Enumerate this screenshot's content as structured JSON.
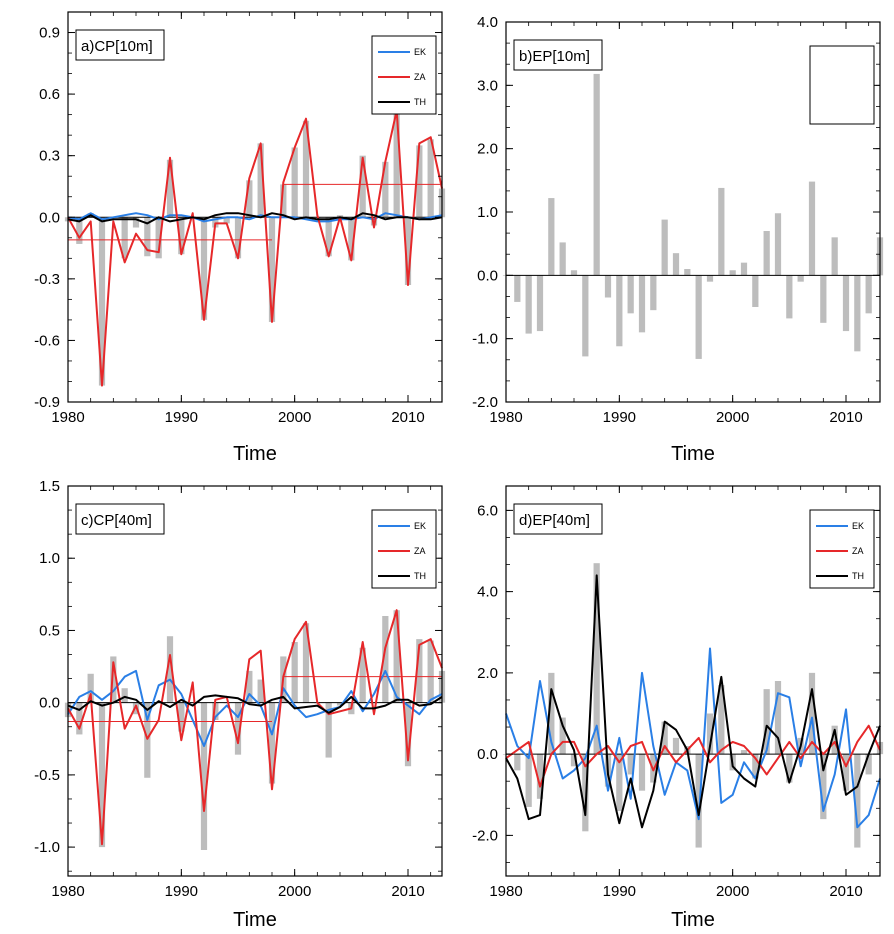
{
  "chart_data": [
    {
      "type": "bar+line",
      "title": "a)CP[10m]",
      "xlabel": "Time",
      "ylabel": "",
      "xlim": [
        1980,
        2013
      ],
      "ylim": [
        -0.9,
        1.0
      ],
      "yticks": [
        -0.9,
        -0.6,
        -0.3,
        0.0,
        0.3,
        0.6,
        0.9
      ],
      "ytick_labels": [
        "-0.9",
        "-0.6",
        "-0.3",
        "0.0",
        "0.3",
        "0.6",
        "0.9"
      ],
      "xticks": [
        1980,
        1990,
        2000,
        2010
      ],
      "xtick_labels": [
        "1980",
        "1990",
        "2000",
        "2010"
      ],
      "legend_position": "top-right",
      "years": [
        1980,
        1981,
        1982,
        1983,
        1984,
        1985,
        1986,
        1987,
        1988,
        1989,
        1990,
        1991,
        1992,
        1993,
        1994,
        1995,
        1996,
        1997,
        1998,
        1999,
        2000,
        2001,
        2002,
        2003,
        2004,
        2005,
        2006,
        2007,
        2008,
        2009,
        2010,
        2011,
        2012,
        2013
      ],
      "bars": [
        -0.02,
        -0.13,
        0.02,
        -0.82,
        0.0,
        -0.2,
        -0.05,
        -0.19,
        -0.2,
        0.28,
        -0.18,
        0.0,
        -0.5,
        -0.05,
        -0.03,
        -0.2,
        0.18,
        0.36,
        -0.51,
        0.16,
        0.34,
        0.47,
        0.0,
        -0.19,
        0.01,
        -0.21,
        0.3,
        -0.04,
        0.27,
        0.52,
        -0.33,
        0.35,
        0.38,
        0.14
      ],
      "series": [
        {
          "name": "EK",
          "color": "#2a7fe6",
          "values": [
            0.0,
            -0.01,
            0.02,
            -0.01,
            0.0,
            0.01,
            0.02,
            0.01,
            -0.01,
            0.01,
            0.01,
            0.0,
            -0.02,
            -0.01,
            0.0,
            0.0,
            -0.01,
            0.01,
            0.0,
            0.0,
            0.0,
            -0.01,
            -0.02,
            -0.02,
            -0.01,
            -0.01,
            0.0,
            -0.01,
            0.02,
            0.01,
            0.0,
            -0.01,
            0.0,
            0.01
          ]
        },
        {
          "name": "ZA",
          "color": "#e6282a",
          "values": [
            0.0,
            -0.1,
            -0.02,
            -0.82,
            -0.02,
            -0.22,
            -0.08,
            -0.16,
            -0.17,
            0.29,
            -0.18,
            0.02,
            -0.5,
            -0.03,
            -0.03,
            -0.2,
            0.19,
            0.36,
            -0.51,
            0.17,
            0.34,
            0.48,
            0.01,
            -0.19,
            0.0,
            -0.21,
            0.29,
            -0.05,
            0.27,
            0.52,
            -0.33,
            0.36,
            0.39,
            0.14
          ]
        },
        {
          "name": "TH",
          "color": "#000000",
          "values": [
            -0.01,
            -0.02,
            0.01,
            -0.02,
            -0.01,
            -0.01,
            -0.01,
            -0.03,
            0.0,
            -0.02,
            -0.01,
            0.0,
            -0.01,
            0.01,
            0.02,
            0.02,
            0.01,
            0.0,
            0.02,
            0.01,
            -0.01,
            0.0,
            -0.01,
            -0.01,
            0.0,
            -0.01,
            0.02,
            0.01,
            -0.01,
            0.0,
            0.0,
            -0.01,
            -0.01,
            0.0
          ]
        }
      ],
      "reference_lines": [
        {
          "y": -0.11,
          "x_start": 1980,
          "x_end": 1998,
          "color": "#e6282a"
        },
        {
          "y": 0.16,
          "x_start": 1999,
          "x_end": 2013,
          "color": "#e6282a"
        }
      ]
    },
    {
      "type": "bar+line",
      "title": "b)EP[10m]",
      "xlabel": "Time",
      "ylabel": "",
      "xlim": [
        1980,
        2013
      ],
      "ylim": [
        -2.0,
        4.0
      ],
      "yticks": [
        -2.0,
        -1.0,
        0.0,
        1.0,
        2.0,
        3.0,
        4.0
      ],
      "ytick_labels": [
        "-2.0",
        "-1.0",
        "0.0",
        "1.0",
        "2.0",
        "3.0",
        "4.0"
      ],
      "xticks": [
        1980,
        1990,
        2000,
        2010
      ],
      "xtick_labels": [
        "1980",
        "1990",
        "2000",
        "2010"
      ],
      "legend_position": "top-right",
      "years": [
        1980,
        1981,
        1982,
        1983,
        1984,
        1985,
        1986,
        1987,
        1988,
        1989,
        1990,
        1991,
        1992,
        1993,
        1994,
        1995,
        1996,
        1997,
        1998,
        1999,
        2000,
        2001,
        2002,
        2003,
        2004,
        2005,
        2006,
        2007,
        2008,
        2009,
        2010,
        2011,
        2012,
        2013
      ],
      "bars": [
        0.0,
        -0.42,
        -0.92,
        -0.88,
        1.22,
        0.52,
        0.08,
        -1.28,
        3.18,
        -0.35,
        -1.12,
        -0.6,
        -0.9,
        -0.55,
        0.88,
        0.35,
        0.1,
        -1.32,
        -0.1,
        1.38,
        0.08,
        0.2,
        -0.5,
        0.7,
        0.98,
        -0.68,
        -0.1,
        1.48,
        -0.75,
        0.6,
        -0.88,
        -1.2,
        -0.6,
        0.6
      ]
    },
    {
      "type": "bar+line",
      "title": "c)CP[40m]",
      "xlabel": "Time",
      "ylabel": "",
      "xlim": [
        1980,
        2013
      ],
      "ylim": [
        -1.2,
        1.5
      ],
      "yticks": [
        -1.0,
        -0.5,
        0.0,
        0.5,
        1.0,
        1.5
      ],
      "ytick_labels": [
        "-1.0",
        "-0.5",
        "0.0",
        "0.5",
        "1.0",
        "1.5"
      ],
      "xticks": [
        1980,
        1990,
        2000,
        2010
      ],
      "xtick_labels": [
        "1980",
        "1990",
        "2000",
        "2010"
      ],
      "legend_position": "top-right",
      "years": [
        1980,
        1981,
        1982,
        1983,
        1984,
        1985,
        1986,
        1987,
        1988,
        1989,
        1990,
        1991,
        1992,
        1993,
        1994,
        1995,
        1996,
        1997,
        1998,
        1999,
        2000,
        2001,
        2002,
        2003,
        2004,
        2005,
        2006,
        2007,
        2008,
        2009,
        2010,
        2011,
        2012,
        2013
      ],
      "bars": [
        -0.1,
        -0.22,
        0.2,
        -1.0,
        0.32,
        0.1,
        -0.08,
        -0.52,
        0.0,
        0.46,
        -0.2,
        0.0,
        -1.02,
        -0.12,
        0.0,
        -0.36,
        0.22,
        0.16,
        -0.56,
        0.32,
        0.42,
        0.55,
        0.0,
        -0.38,
        -0.02,
        -0.08,
        0.38,
        0.0,
        0.6,
        0.64,
        -0.44,
        0.44,
        0.43,
        0.22
      ],
      "series": [
        {
          "name": "EK",
          "color": "#2a7fe6",
          "values": [
            -0.08,
            0.04,
            0.08,
            0.02,
            0.08,
            0.18,
            0.22,
            -0.12,
            0.12,
            0.16,
            0.06,
            -0.12,
            -0.3,
            -0.1,
            -0.02,
            -0.1,
            0.06,
            -0.02,
            -0.22,
            0.1,
            -0.02,
            -0.1,
            -0.08,
            -0.05,
            -0.03,
            0.08,
            -0.06,
            0.06,
            0.22,
            0.04,
            -0.02,
            -0.08,
            0.02,
            0.06
          ]
        },
        {
          "name": "ZA",
          "color": "#e6282a",
          "values": [
            -0.04,
            -0.18,
            0.06,
            -0.98,
            0.28,
            -0.18,
            -0.02,
            -0.25,
            -0.12,
            0.33,
            -0.26,
            0.14,
            -0.75,
            0.02,
            0.04,
            -0.28,
            0.3,
            0.36,
            -0.6,
            0.18,
            0.44,
            0.56,
            0.0,
            -0.08,
            -0.06,
            -0.04,
            0.42,
            -0.08,
            0.38,
            0.64,
            -0.4,
            0.4,
            0.44,
            0.24
          ]
        },
        {
          "name": "TH",
          "color": "#000000",
          "values": [
            -0.02,
            -0.05,
            0.01,
            -0.02,
            0.0,
            0.04,
            0.02,
            -0.05,
            0.01,
            -0.03,
            0.02,
            -0.02,
            0.04,
            0.05,
            0.04,
            0.03,
            -0.01,
            -0.02,
            0.02,
            0.04,
            -0.04,
            -0.03,
            -0.02,
            -0.07,
            -0.03,
            0.04,
            -0.04,
            -0.04,
            -0.02,
            0.02,
            0.02,
            -0.02,
            -0.01,
            0.04
          ]
        }
      ],
      "reference_lines": [
        {
          "y": -0.13,
          "x_start": 1980,
          "x_end": 1998,
          "color": "#e6282a"
        },
        {
          "y": 0.18,
          "x_start": 1999,
          "x_end": 2013,
          "color": "#e6282a"
        }
      ]
    },
    {
      "type": "bar+line",
      "title": "d)EP[40m]",
      "xlabel": "Time",
      "ylabel": "",
      "xlim": [
        1980,
        2013
      ],
      "ylim": [
        -3.0,
        6.6
      ],
      "yticks": [
        -2.0,
        0.0,
        2.0,
        4.0,
        6.0
      ],
      "ytick_labels": [
        "-2.0",
        "0.0",
        "2.0",
        "4.0",
        "6.0"
      ],
      "xticks": [
        1980,
        1990,
        2000,
        2010
      ],
      "xtick_labels": [
        "1980",
        "1990",
        "2000",
        "2010"
      ],
      "legend_position": "top-right",
      "years": [
        1980,
        1981,
        1982,
        1983,
        1984,
        1985,
        1986,
        1987,
        1988,
        1989,
        1990,
        1991,
        1992,
        1993,
        1994,
        1995,
        1996,
        1997,
        1998,
        1999,
        2000,
        2001,
        2002,
        2003,
        2004,
        2005,
        2006,
        2007,
        2008,
        2009,
        2010,
        2011,
        2012,
        2013
      ],
      "bars": [
        0.0,
        -0.4,
        -1.3,
        -1.1,
        2.0,
        0.9,
        -0.3,
        -1.9,
        4.7,
        -0.8,
        -1.4,
        -0.5,
        -0.9,
        -0.7,
        0.8,
        0.4,
        0.2,
        -2.3,
        1.0,
        1.7,
        -0.4,
        0.1,
        -0.6,
        1.6,
        1.8,
        -0.7,
        0.4,
        2.0,
        -1.6,
        0.7,
        -0.9,
        -2.3,
        -0.5,
        0.3
      ],
      "series": [
        {
          "name": "EK",
          "color": "#2a7fe6",
          "values": [
            1.0,
            0.2,
            -0.1,
            1.8,
            0.3,
            -0.6,
            -0.4,
            -0.1,
            0.7,
            -0.9,
            0.4,
            -1.1,
            2.0,
            0.2,
            -1.0,
            -0.2,
            -0.4,
            -1.6,
            2.6,
            -1.2,
            -1.0,
            -0.2,
            -0.6,
            0.1,
            1.5,
            1.4,
            -0.3,
            0.9,
            -1.4,
            -0.5,
            1.1,
            -1.8,
            -1.5,
            -0.6
          ]
        },
        {
          "name": "ZA",
          "color": "#e6282a",
          "values": [
            -0.1,
            0.1,
            0.3,
            -0.8,
            0.0,
            0.3,
            0.3,
            -0.3,
            0.0,
            0.2,
            -0.2,
            0.2,
            0.3,
            -0.4,
            0.2,
            -0.2,
            0.1,
            0.4,
            -0.2,
            0.1,
            0.3,
            0.2,
            -0.1,
            -0.5,
            -0.1,
            0.3,
            -0.1,
            0.3,
            0.0,
            0.3,
            -0.3,
            0.3,
            0.7,
            0.1
          ]
        },
        {
          "name": "TH",
          "color": "#000000",
          "values": [
            -0.1,
            -0.6,
            -1.6,
            -1.5,
            1.6,
            0.7,
            0.1,
            -1.5,
            4.4,
            -0.5,
            -1.7,
            -0.6,
            -1.8,
            -0.9,
            0.8,
            0.6,
            0.1,
            -1.5,
            0.2,
            1.9,
            -0.3,
            -0.6,
            -0.8,
            0.7,
            0.4,
            -0.7,
            0.2,
            1.6,
            -0.4,
            0.6,
            -1.0,
            -0.8,
            0.0,
            0.7
          ]
        }
      ],
      "reference_lines": []
    }
  ]
}
